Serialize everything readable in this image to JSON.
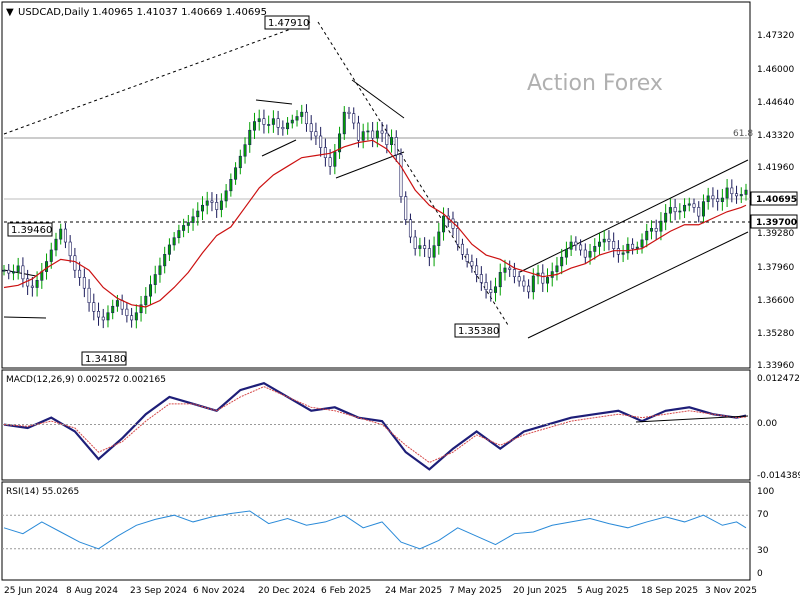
{
  "chart_data": {
    "type": "candlestick",
    "header": {
      "symbol": "USDCAD,Daily",
      "ohlc": "1.40965 1.41037 1.40669 1.40695",
      "watermark": "Action Forex"
    },
    "price_axis": {
      "ylim": [
        1.3285,
        1.4856
      ],
      "ticks": [
        "1.47320",
        "1.46000",
        "1.44640",
        "1.43320",
        "1.41960",
        "1.40695",
        "1.39280",
        "1.37960",
        "1.36600",
        "1.35280",
        "1.33960"
      ],
      "current_price_label": "1.40695",
      "level_label": "1.39700"
    },
    "time_axis": {
      "labels": [
        "25 Jun 2024",
        "8 Aug 2024",
        "23 Sep 2024",
        "6 Nov 2024",
        "20 Dec 2024",
        "6 Feb 2025",
        "24 Mar 2025",
        "7 May 2025",
        "20 Jun 2025",
        "5 Aug 2025",
        "18 Sep 2025",
        "3 Nov 2025"
      ]
    },
    "price_path": [
      [
        0,
        1.37
      ],
      [
        3,
        1.368
      ],
      [
        6,
        1.372
      ],
      [
        9,
        1.363
      ],
      [
        12,
        1.362
      ],
      [
        15,
        1.367
      ],
      [
        18,
        1.374
      ],
      [
        21,
        1.382
      ],
      [
        24,
        1.389
      ],
      [
        27,
        1.38
      ],
      [
        30,
        1.37
      ],
      [
        33,
        1.365
      ],
      [
        36,
        1.355
      ],
      [
        39,
        1.349
      ],
      [
        42,
        1.347
      ],
      [
        45,
        1.352
      ],
      [
        48,
        1.356
      ],
      [
        51,
        1.35
      ],
      [
        54,
        1.347
      ],
      [
        57,
        1.352
      ],
      [
        60,
        1.358
      ],
      [
        63,
        1.366
      ],
      [
        66,
        1.372
      ],
      [
        69,
        1.38
      ],
      [
        72,
        1.385
      ],
      [
        75,
        1.39
      ],
      [
        78,
        1.392
      ],
      [
        81,
        1.396
      ],
      [
        84,
        1.4
      ],
      [
        87,
        1.403
      ],
      [
        90,
        1.398
      ],
      [
        93,
        1.404
      ],
      [
        96,
        1.412
      ],
      [
        99,
        1.42
      ],
      [
        102,
        1.428
      ],
      [
        105,
        1.438
      ],
      [
        108,
        1.44
      ],
      [
        111,
        1.436
      ],
      [
        114,
        1.44
      ],
      [
        117,
        1.434
      ],
      [
        120,
        1.438
      ],
      [
        123,
        1.44
      ],
      [
        126,
        1.443
      ],
      [
        129,
        1.435
      ],
      [
        132,
        1.432
      ],
      [
        135,
        1.424
      ],
      [
        138,
        1.418
      ],
      [
        141,
        1.428
      ],
      [
        144,
        1.443
      ],
      [
        147,
        1.442
      ],
      [
        150,
        1.43
      ],
      [
        153,
        1.436
      ],
      [
        156,
        1.431
      ],
      [
        159,
        1.436
      ],
      [
        162,
        1.428
      ],
      [
        165,
        1.433
      ],
      [
        168,
        1.404
      ],
      [
        171,
        1.388
      ],
      [
        174,
        1.38
      ],
      [
        177,
        1.382
      ],
      [
        180,
        1.376
      ],
      [
        183,
        1.384
      ],
      [
        186,
        1.395
      ],
      [
        189,
        1.393
      ],
      [
        192,
        1.382
      ],
      [
        195,
        1.375
      ],
      [
        198,
        1.372
      ],
      [
        201,
        1.366
      ],
      [
        204,
        1.361
      ],
      [
        207,
        1.359
      ],
      [
        210,
        1.369
      ],
      [
        213,
        1.372
      ],
      [
        216,
        1.367
      ],
      [
        219,
        1.364
      ],
      [
        222,
        1.36
      ],
      [
        225,
        1.371
      ],
      [
        228,
        1.364
      ],
      [
        231,
        1.368
      ],
      [
        234,
        1.372
      ],
      [
        237,
        1.378
      ],
      [
        240,
        1.383
      ],
      [
        243,
        1.381
      ],
      [
        246,
        1.376
      ],
      [
        249,
        1.38
      ],
      [
        252,
        1.383
      ],
      [
        255,
        1.385
      ],
      [
        258,
        1.38
      ],
      [
        261,
        1.376
      ],
      [
        264,
        1.382
      ],
      [
        267,
        1.379
      ],
      [
        270,
        1.384
      ],
      [
        273,
        1.39
      ],
      [
        276,
        1.388
      ],
      [
        279,
        1.395
      ],
      [
        282,
        1.399
      ],
      [
        285,
        1.396
      ],
      [
        288,
        1.4
      ],
      [
        291,
        1.401
      ],
      [
        294,
        1.395
      ],
      [
        297,
        1.405
      ],
      [
        300,
        1.403
      ],
      [
        303,
        1.401
      ],
      [
        306,
        1.408
      ],
      [
        309,
        1.404
      ],
      [
        312,
        1.405
      ],
      [
        314,
        1.407
      ]
    ],
    "ma_path": [
      [
        0,
        1.362
      ],
      [
        6,
        1.363
      ],
      [
        12,
        1.366
      ],
      [
        18,
        1.371
      ],
      [
        24,
        1.375
      ],
      [
        30,
        1.374
      ],
      [
        36,
        1.37
      ],
      [
        42,
        1.362
      ],
      [
        48,
        1.357
      ],
      [
        54,
        1.354
      ],
      [
        60,
        1.353
      ],
      [
        66,
        1.356
      ],
      [
        72,
        1.362
      ],
      [
        78,
        1.369
      ],
      [
        84,
        1.378
      ],
      [
        90,
        1.386
      ],
      [
        96,
        1.39
      ],
      [
        102,
        1.399
      ],
      [
        108,
        1.408
      ],
      [
        114,
        1.414
      ],
      [
        120,
        1.418
      ],
      [
        126,
        1.422
      ],
      [
        132,
        1.423
      ],
      [
        138,
        1.424
      ],
      [
        144,
        1.427
      ],
      [
        150,
        1.429
      ],
      [
        156,
        1.43
      ],
      [
        162,
        1.426
      ],
      [
        168,
        1.418
      ],
      [
        174,
        1.407
      ],
      [
        180,
        1.4
      ],
      [
        186,
        1.396
      ],
      [
        192,
        1.39
      ],
      [
        198,
        1.382
      ],
      [
        204,
        1.377
      ],
      [
        210,
        1.375
      ],
      [
        216,
        1.371
      ],
      [
        222,
        1.369
      ],
      [
        228,
        1.367
      ],
      [
        234,
        1.368
      ],
      [
        240,
        1.371
      ],
      [
        246,
        1.373
      ],
      [
        252,
        1.377
      ],
      [
        258,
        1.379
      ],
      [
        264,
        1.379
      ],
      [
        270,
        1.38
      ],
      [
        276,
        1.384
      ],
      [
        282,
        1.388
      ],
      [
        288,
        1.391
      ],
      [
        294,
        1.391
      ],
      [
        300,
        1.394
      ],
      [
        306,
        1.397
      ],
      [
        312,
        1.399
      ],
      [
        314,
        1.4
      ]
    ],
    "annotations": {
      "high_label": "1.47910",
      "low_label_1": "1.34180",
      "low_label_2": "1.35380",
      "level_left_label": "1.39460",
      "fib_label": "61.8"
    },
    "macd": {
      "label": "MACD(12,26,9) 0.002572 0.002165",
      "ticks": [
        "0.012472",
        "0.00",
        "-0.014389"
      ],
      "ylim": [
        -0.0155,
        0.0135
      ],
      "macd_path": [
        [
          0,
          0.0
        ],
        [
          10,
          -0.001
        ],
        [
          20,
          0.002
        ],
        [
          30,
          -0.002
        ],
        [
          40,
          -0.01
        ],
        [
          50,
          -0.004
        ],
        [
          60,
          0.003
        ],
        [
          70,
          0.008
        ],
        [
          80,
          0.006
        ],
        [
          90,
          0.004
        ],
        [
          100,
          0.01
        ],
        [
          110,
          0.012
        ],
        [
          120,
          0.008
        ],
        [
          130,
          0.004
        ],
        [
          140,
          0.005
        ],
        [
          150,
          0.002
        ],
        [
          160,
          0.001
        ],
        [
          170,
          -0.008
        ],
        [
          180,
          -0.013
        ],
        [
          190,
          -0.007
        ],
        [
          200,
          -0.002
        ],
        [
          210,
          -0.007
        ],
        [
          220,
          -0.002
        ],
        [
          230,
          0.0
        ],
        [
          240,
          0.002
        ],
        [
          250,
          0.003
        ],
        [
          260,
          0.004
        ],
        [
          270,
          0.001
        ],
        [
          280,
          0.004
        ],
        [
          290,
          0.005
        ],
        [
          300,
          0.003
        ],
        [
          310,
          0.002
        ],
        [
          314,
          0.0026
        ]
      ],
      "signal_path": [
        [
          0,
          0.0
        ],
        [
          10,
          -0.0005
        ],
        [
          20,
          0.001
        ],
        [
          30,
          -0.001
        ],
        [
          40,
          -0.008
        ],
        [
          50,
          -0.005
        ],
        [
          60,
          0.001
        ],
        [
          70,
          0.006
        ],
        [
          80,
          0.006
        ],
        [
          90,
          0.004
        ],
        [
          100,
          0.008
        ],
        [
          110,
          0.011
        ],
        [
          120,
          0.008
        ],
        [
          130,
          0.005
        ],
        [
          140,
          0.004
        ],
        [
          150,
          0.002
        ],
        [
          160,
          0.0
        ],
        [
          170,
          -0.006
        ],
        [
          180,
          -0.011
        ],
        [
          190,
          -0.008
        ],
        [
          200,
          -0.003
        ],
        [
          210,
          -0.006
        ],
        [
          220,
          -0.003
        ],
        [
          230,
          -0.001
        ],
        [
          240,
          0.001
        ],
        [
          250,
          0.002
        ],
        [
          260,
          0.003
        ],
        [
          270,
          0.002
        ],
        [
          280,
          0.003
        ],
        [
          290,
          0.004
        ],
        [
          300,
          0.003
        ],
        [
          310,
          0.002
        ],
        [
          314,
          0.0022
        ]
      ]
    },
    "rsi": {
      "label": "RSI(14) 55.0265",
      "ticks": [
        "100",
        "70",
        "30",
        "0"
      ],
      "ylim": [
        0,
        100
      ],
      "rsi_path": [
        [
          0,
          55
        ],
        [
          8,
          48
        ],
        [
          16,
          62
        ],
        [
          24,
          50
        ],
        [
          32,
          38
        ],
        [
          40,
          30
        ],
        [
          48,
          45
        ],
        [
          56,
          58
        ],
        [
          64,
          65
        ],
        [
          72,
          70
        ],
        [
          80,
          62
        ],
        [
          88,
          68
        ],
        [
          96,
          72
        ],
        [
          104,
          75
        ],
        [
          112,
          60
        ],
        [
          120,
          66
        ],
        [
          128,
          58
        ],
        [
          136,
          62
        ],
        [
          144,
          70
        ],
        [
          152,
          55
        ],
        [
          160,
          62
        ],
        [
          168,
          38
        ],
        [
          176,
          30
        ],
        [
          184,
          40
        ],
        [
          192,
          55
        ],
        [
          200,
          45
        ],
        [
          208,
          35
        ],
        [
          216,
          48
        ],
        [
          224,
          50
        ],
        [
          232,
          58
        ],
        [
          240,
          62
        ],
        [
          248,
          66
        ],
        [
          256,
          60
        ],
        [
          264,
          55
        ],
        [
          272,
          62
        ],
        [
          280,
          68
        ],
        [
          288,
          62
        ],
        [
          296,
          70
        ],
        [
          304,
          58
        ],
        [
          310,
          62
        ],
        [
          314,
          55
        ]
      ]
    },
    "colors": {
      "up_body": "#00a000",
      "bar": "#1a1a5a",
      "ma": "#cc1111",
      "macd": "#1e1e78",
      "signal": "#d64b4b",
      "rsi": "#2a8ad8",
      "grid": "#cfcfcf",
      "watermark": "#b0b0b0"
    }
  }
}
